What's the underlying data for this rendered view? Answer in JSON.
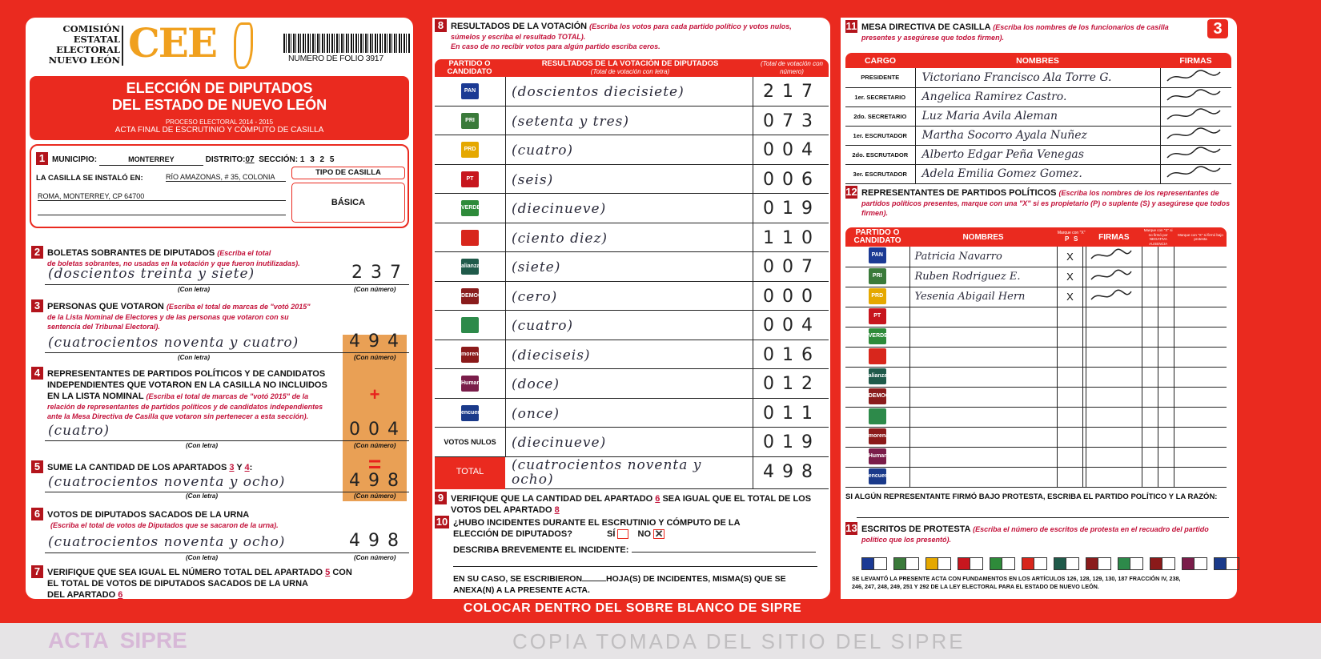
{
  "header": {
    "org_lines": [
      "COMISIÓN",
      "ESTATAL",
      "ELECTORAL",
      "NUEVO LEÓN"
    ],
    "logo": "CEE",
    "folio": "NUMERO DE FOLIO 3917",
    "title1": "ELECCIÓN DE DIPUTADOS",
    "title2": "DEL ESTADO DE NUEVO LEÓN",
    "process": "PROCESO ELECTORAL 2014 - 2015",
    "acta": "ACTA FINAL DE ESCRUTINIO Y CÓMPUTO DE CASILLA"
  },
  "s1": {
    "n": "1",
    "municipio_label": "MUNICIPIO:",
    "municipio": "MONTERREY",
    "distrito_label": "DISTRITO:",
    "distrito": "07",
    "seccion_label": "SECCIÓN:",
    "seccion": "1 3 2 5",
    "lugar_label": "LA CASILLA SE INSTALÓ EN:",
    "lugar1": "RÍO AMAZONAS, # 35, COLONIA",
    "lugar2": "ROMA, MONTERREY, CP 64700",
    "tipo_label": "TIPO DE CASILLA",
    "tipo": "BÁSICA"
  },
  "labels": {
    "con_letra": "(Con letra)",
    "con_numero": "(Con número)",
    "plus": "+",
    "equals": "="
  },
  "s2": {
    "n": "2",
    "title": "BOLETAS SOBRANTES DE DIPUTADOS",
    "ins1": "(Escriba el total",
    "ins2": "de boletas sobrantes, no usadas en la votación y que fueron inutilizadas).",
    "letra": "(doscientos treinta y siete)",
    "numero": "237"
  },
  "s3": {
    "n": "3",
    "title": "PERSONAS QUE VOTARON",
    "ins1": "(Escriba el total de marcas de \"votó 2015\"",
    "ins2": "de la Lista Nominal de Electores y de las personas que votaron con su",
    "ins3": "sentencia del Tribunal Electoral).",
    "letra": "(cuatrocientos noventa y cuatro)",
    "numero": "494"
  },
  "s4": {
    "n": "4",
    "title1": "REPRESENTANTES DE PARTIDOS POLÍTICOS Y DE CANDIDATOS",
    "title2": "INDEPENDIENTES QUE VOTARON EN LA CASILLA NO INCLUIDOS",
    "title3": "EN LA LISTA NOMINAL",
    "ins1": "(Escriba el total de marcas de \"votó 2015\" de la",
    "ins2": "relación de representantes de partidos políticos y de candidatos independientes",
    "ins3": "ante la Mesa Directiva de Casilla que votaron sin pertenecer a esta sección).",
    "letra": "(cuatro)",
    "numero": "004"
  },
  "s5": {
    "n": "5",
    "title": "SUME LA CANTIDAD DE LOS APARTADOS",
    "a": "3",
    "y": "Y",
    "b": "4",
    "letra": "(cuatrocientos noventa y ocho)",
    "numero": "498"
  },
  "s6": {
    "n": "6",
    "title": "VOTOS DE DIPUTADOS SACADOS DE LA URNA",
    "ins": "(Escriba el total de votos de Diputados que se sacaron de la urna).",
    "letra": "(cuatrocientos noventa y ocho)",
    "numero": "498"
  },
  "s7": {
    "n": "7",
    "l1": "VERIFIQUE QUE SEA IGUAL EL NÚMERO TOTAL DEL APARTADO",
    "a": "5",
    "con": "CON",
    "l2": "EL TOTAL DE VOTOS DE DIPUTADOS SACADOS DE LA URNA",
    "l3": "DEL APARTADO",
    "b": "6"
  },
  "s8": {
    "n": "8",
    "title": "RESULTADOS DE LA VOTACIÓN",
    "ins1": "(Escriba los votos para cada partido político y votos nulos,",
    "ins2": "súmelos y escriba el resultado TOTAL).",
    "ins3": "En caso de no recibir votos para algún partido escriba ceros.",
    "col1": "PARTIDO O CANDIDATO",
    "col2": "RESULTADOS DE LA VOTACIÓN DE DIPUTADOS",
    "col2_sub": "(Total de votación con letra)",
    "col3": "(Total de votación con número)",
    "rows": [
      {
        "party": "PAN",
        "color": "#1b3a94",
        "letra": "(doscientos diecisiete)",
        "numero": "217"
      },
      {
        "party": "PRI",
        "color": "#3a7a3a",
        "letra": "(setenta y tres)",
        "numero": "073"
      },
      {
        "party": "PRD",
        "color": "#e5a800",
        "letra": "(cuatro)",
        "numero": "004"
      },
      {
        "party": "PT",
        "color": "#c7161e",
        "letra": "(seis)",
        "numero": "006"
      },
      {
        "party": "VERDE",
        "color": "#2e8b3a",
        "letra": "(diecinueve)",
        "numero": "019"
      },
      {
        "party": "",
        "color": "#d8261c",
        "letra": "(ciento diez)",
        "numero": "110"
      },
      {
        "party": "alianza",
        "color": "#1f5a4a",
        "letra": "(siete)",
        "numero": "007"
      },
      {
        "party": "DEMOCRATA",
        "color": "#8a1c1c",
        "letra": "(cero)",
        "numero": "000"
      },
      {
        "party": "",
        "color": "#2d8a4a",
        "letra": "(cuatro)",
        "numero": "004"
      },
      {
        "party": "morena",
        "color": "#8b1a1a",
        "letra": "(dieciseis)",
        "numero": "016"
      },
      {
        "party": "Humanista",
        "color": "#7a1d4a",
        "letra": "(doce)",
        "numero": "012"
      },
      {
        "party": "encuentro social",
        "color": "#1a3a8a",
        "letra": "(once)",
        "numero": "011"
      },
      {
        "party": "VOTOS NULOS",
        "color": "",
        "letra": "(diecinueve)",
        "numero": "019"
      }
    ],
    "total_label": "TOTAL",
    "total_letra": "(cuatrocientos noventa y ocho)",
    "total_numero": "498"
  },
  "s9": {
    "n": "9",
    "l1": "VERIFIQUE QUE LA CANTIDAD DEL APARTADO",
    "a": "6",
    "l1b": "SEA IGUAL QUE EL TOTAL DE LOS",
    "l2": "VOTOS DEL APARTADO",
    "b": "8"
  },
  "s10": {
    "n": "10",
    "l1": "¿HUBO INCIDENTES DURANTE EL ESCRUTINIO Y CÓMPUTO DE LA",
    "l2": "ELECCIÓN DE DIPUTADOS?",
    "si": "SÍ",
    "no": "NO",
    "describe": "DESCRIBA BREVEMENTE EL INCIDENTE:",
    "caso1": "EN SU CASO, SE ESCRIBIERON",
    "caso2": "HOJA(S) DE INCIDENTES, MISMA(S) QUE SE",
    "caso3": "ANEXA(N) A LA PRESENTE ACTA.",
    "answer": "NO"
  },
  "s11": {
    "n": "11",
    "badge": "3",
    "title": "MESA DIRECTIVA DE CASILLA",
    "ins1": "(Escriba los nombres de los funcionarios de casilla",
    "ins2": "presentes y asegúrese que todos firmen).",
    "col1": "CARGO",
    "col2": "NOMBRES",
    "col3": "FIRMAS",
    "rows": [
      {
        "cargo": "PRESIDENTE",
        "nombre": "Victoriano Francisco Ala Torre G."
      },
      {
        "cargo": "1er. SECRETARIO",
        "nombre": "Angelica Ramirez Castro."
      },
      {
        "cargo": "2do. SECRETARIO",
        "nombre": "Luz Maria Avila Aleman"
      },
      {
        "cargo": "1er. ESCRUTADOR",
        "nombre": "Martha Socorro Ayala Nuñez"
      },
      {
        "cargo": "2do. ESCRUTADOR",
        "nombre": "Alberto Edgar Peña Venegas"
      },
      {
        "cargo": "3er. ESCRUTADOR",
        "nombre": "Adela Emilia Gomez Gomez."
      }
    ]
  },
  "s12": {
    "n": "12",
    "title": "REPRESENTANTES DE PARTIDOS POLÍTICOS",
    "ins1": "(Escriba los nombres de los representantes de",
    "ins2": "partidos políticos presentes, marque con una \"X\" si es propietario (P) o suplente (S) y asegúrese que todos firmen).",
    "col1": "PARTIDO O CANDIDATO",
    "col2": "NOMBRES",
    "col_ps": "Marque con \"X\"",
    "p": "P",
    "s": "S",
    "col_firmas": "FIRMAS",
    "col_nf": "Marque con \"X\" si no firmó por",
    "neg": "NEGATIVA",
    "aus": "AUSENCIA",
    "col_prot": "Marque con \"X\" si firmó bajo protesta",
    "rows": [
      {
        "party": "PAN",
        "color": "#1b3a94",
        "nombre": "Patricia Navarro",
        "p": "X"
      },
      {
        "party": "PRI",
        "color": "#3a7a3a",
        "nombre": "Ruben Rodriguez E.",
        "p": "X"
      },
      {
        "party": "PRD",
        "color": "#e5a800",
        "nombre": "Yesenia Abigail Hern",
        "p": "X"
      },
      {
        "party": "PT",
        "color": "#c7161e"
      },
      {
        "party": "VERDE",
        "color": "#2e8b3a"
      },
      {
        "party": "",
        "color": "#d8261c"
      },
      {
        "party": "alianza",
        "color": "#1f5a4a"
      },
      {
        "party": "DEMOCRATA",
        "color": "#8a1c1c"
      },
      {
        "party": "",
        "color": "#2d8a4a"
      },
      {
        "party": "morena",
        "color": "#8b1a1a"
      },
      {
        "party": "Humanista",
        "color": "#7a1d4a"
      },
      {
        "party": "encuentro social",
        "color": "#1a3a8a"
      }
    ],
    "protesta": "SI ALGÚN REPRESENTANTE FIRMÓ BAJO PROTESTA, ESCRIBA EL PARTIDO POLÍTICO Y LA RAZÓN:"
  },
  "s13": {
    "n": "13",
    "title": "ESCRITOS DE PROTESTA",
    "ins1": "(Escriba el número de escritos de protesta en el recuadro del partido",
    "ins2": "político que los presentó).",
    "legal1": "SE LEVANTÓ LA PRESENTE ACTA CON FUNDAMENTOS EN LOS ARTÍCULOS 126, 128, 129, 130, 187 FRACCIÓN IV, 238,",
    "legal2": "246, 247, 248, 249, 251 Y 292 DE LA LEY ELECTORAL PARA EL ESTADO DE NUEVO LEÓN."
  },
  "footer": "COLOCAR DENTRO DEL SOBRE BLANCO DE SIPRE",
  "watermarks": {
    "acta1": "ACTA",
    "acta2": "SIPRE",
    "copia": "COPIA TOMADA DEL SITIO DEL SIPRE"
  },
  "colors": {
    "red": "#ea2a1f",
    "dark_red": "#b3141c",
    "instruction": "#c3123a",
    "orange_logo": "#f0a01e",
    "orange_column": "#e9a055"
  }
}
